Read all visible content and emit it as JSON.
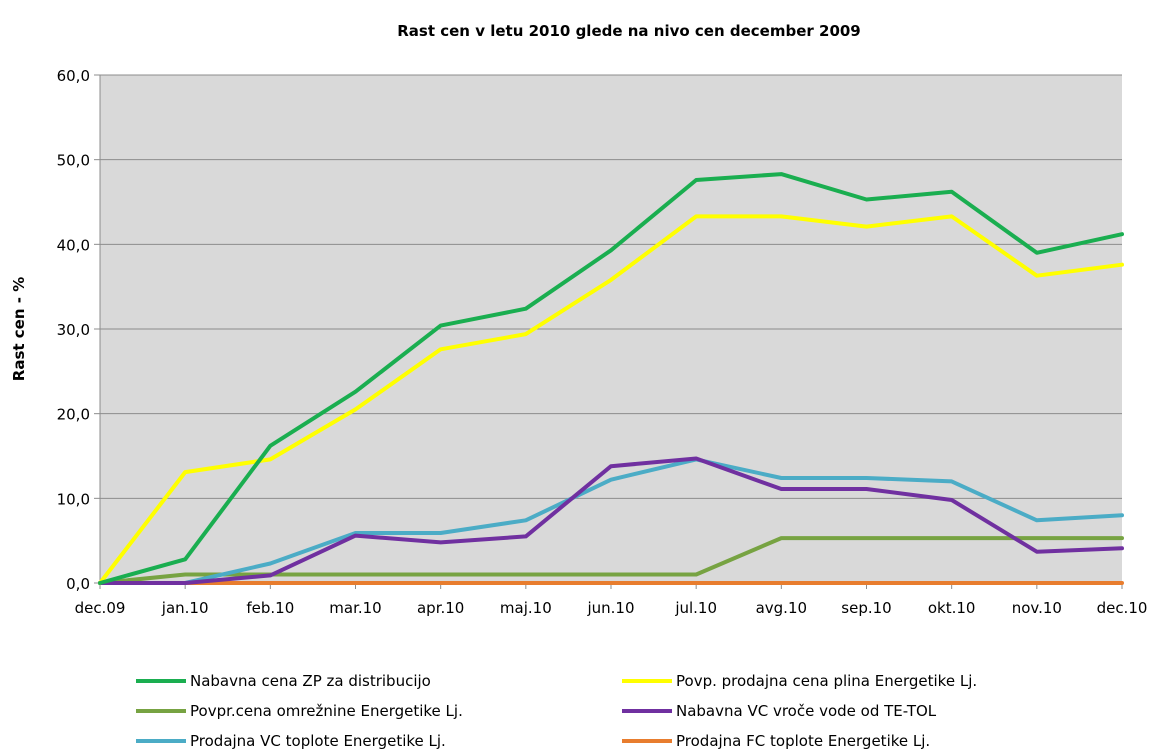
{
  "chart_data": {
    "type": "line",
    "title": "Rast cen v letu 2010 glede na nivo cen december  2009",
    "xlabel": "",
    "ylabel": "Rast cen - %",
    "categories": [
      "dec.09",
      "jan.10",
      "feb.10",
      "mar.10",
      "apr.10",
      "maj.10",
      "jun.10",
      "jul.10",
      "avg.10",
      "sep.10",
      "okt.10",
      "nov.10",
      "dec.10"
    ],
    "y_ticks": [
      "0,0",
      "10,0",
      "20,0",
      "30,0",
      "40,0",
      "50,0",
      "60,0"
    ],
    "ylim": [
      0,
      60
    ],
    "grid": true,
    "plot_background": "#d9d9d9",
    "legend_position": "bottom",
    "series": [
      {
        "name": "Nabavna cena ZP za distribucijo",
        "color": "#1aae50",
        "values": [
          0,
          2.8,
          16.2,
          22.6,
          30.4,
          32.4,
          39.3,
          47.6,
          48.3,
          45.3,
          46.2,
          39.0,
          41.2
        ]
      },
      {
        "name": "Povp. prodajna cena plina Energetike Lj.",
        "color": "#ffff00",
        "values": [
          0,
          13.1,
          14.6,
          20.5,
          27.6,
          29.4,
          35.8,
          43.3,
          43.3,
          42.1,
          43.3,
          36.3,
          37.6
        ]
      },
      {
        "name": "Povpr.cena omrežnine Energetike Lj.",
        "color": "#77a342",
        "values": [
          0,
          1.0,
          1.0,
          1.0,
          1.0,
          1.0,
          1.0,
          1.0,
          5.3,
          5.3,
          5.3,
          5.3,
          5.3
        ]
      },
      {
        "name": "Nabavna VC vroče vode od TE-TOL",
        "color": "#7030a0",
        "values": [
          0,
          0,
          0.9,
          5.6,
          4.8,
          5.5,
          13.8,
          14.7,
          11.1,
          11.1,
          9.8,
          3.7,
          4.1
        ]
      },
      {
        "name": "Prodajna VC toplote Energetike Lj.",
        "color": "#4bacc6",
        "values": [
          0,
          0,
          2.3,
          5.9,
          5.9,
          7.4,
          12.2,
          14.6,
          12.4,
          12.4,
          12.0,
          7.4,
          8.0
        ]
      },
      {
        "name": "Prodajna FC toplote Energetike Lj.",
        "color": "#e87d2e",
        "values": [
          0,
          0,
          0,
          0,
          0,
          0,
          0,
          0,
          0,
          0,
          0,
          0,
          0
        ]
      }
    ]
  }
}
